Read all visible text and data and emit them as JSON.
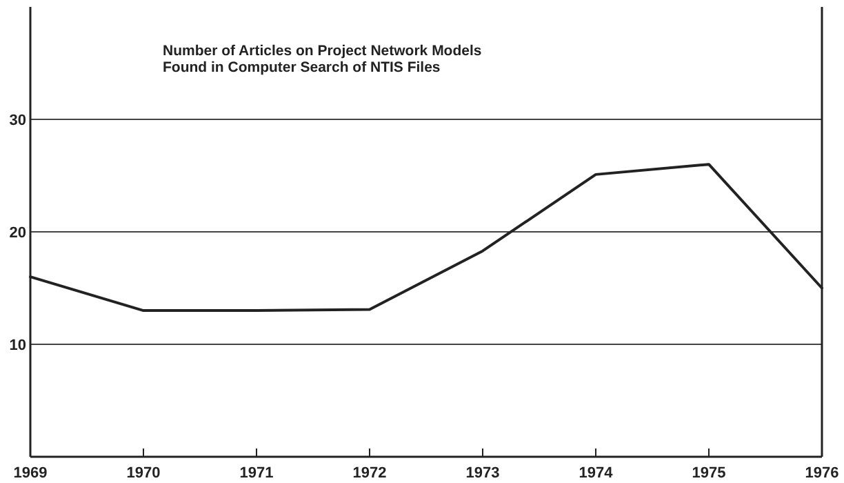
{
  "chart_data": {
    "type": "line",
    "title": "Number of Articles on Project Network Models Found in Computer Search of NTIS Files",
    "x": [
      1969,
      1970,
      1971,
      1972,
      1973,
      1974,
      1975,
      1976
    ],
    "series": [
      {
        "color": "#222222",
        "values": [
          16,
          13,
          13,
          13.1,
          18.3,
          25.1,
          26,
          15
        ]
      }
    ],
    "xlim": [
      1969,
      1976
    ],
    "xticks": [
      1969,
      1970,
      1971,
      1972,
      1973,
      1974,
      1975,
      1976
    ],
    "ylim": [
      0,
      40
    ],
    "yticks": [
      10,
      20,
      30
    ],
    "grid": "y",
    "marker": "none",
    "line_style": "solid"
  }
}
